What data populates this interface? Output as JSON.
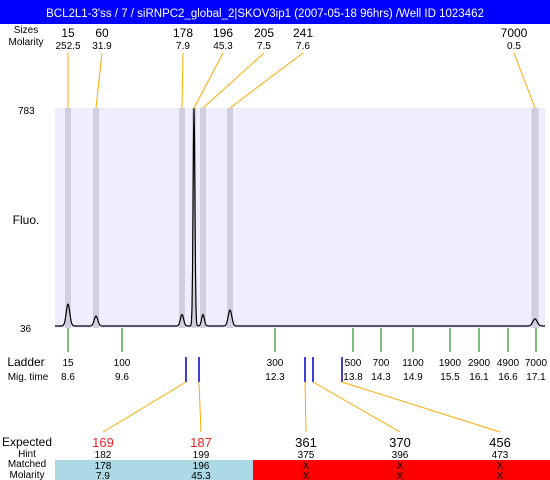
{
  "title": "BCL2L1-3'ss / 7 / siRNPC2_global_2|SKOV3ip1 (2007-05-18 96hrs) /Well ID 1023462",
  "labels": {
    "sizes": "Sizes",
    "molarity": "Molarity",
    "fluo": "Fluo.",
    "ladder": "Ladder",
    "mig_time": "Mig. time",
    "expected": "Expected",
    "hint": "Hint",
    "matched": "Matched",
    "molarity_bottom": "Molarity"
  },
  "colors": {
    "title_bg": "#0000ff",
    "plot_bg": "#eeeeff",
    "band": "#cfcfdf",
    "connector": "#ffaa00",
    "ladder_tick": "#007700",
    "marker": "#0000cc",
    "expected_red": "#ee2222",
    "matched_ok": "#add8e6",
    "matched_fail": "#ff0000"
  },
  "top_peaks": [
    {
      "size": "15",
      "molarity": "252.5"
    },
    {
      "size": "60",
      "molarity": "31.9"
    },
    {
      "size": "178",
      "molarity": "7.9"
    },
    {
      "size": "196",
      "molarity": "45.3"
    },
    {
      "size": "205",
      "molarity": "7.5"
    },
    {
      "size": "241",
      "molarity": "7.6"
    },
    {
      "size": "7000",
      "molarity": "0.5"
    }
  ],
  "ladder": [
    {
      "size": "15",
      "time": "8.6"
    },
    {
      "size": "100",
      "time": "9.6"
    },
    {
      "size": "300",
      "time": "12.3"
    },
    {
      "size": "500",
      "time": "13.8"
    },
    {
      "size": "700",
      "time": "14.3"
    },
    {
      "size": "1100",
      "time": "14.9"
    },
    {
      "size": "1900",
      "time": "15.5"
    },
    {
      "size": "2900",
      "time": "16.1"
    },
    {
      "size": "4900",
      "time": "16.6"
    },
    {
      "size": "7000",
      "time": "17.1"
    }
  ],
  "expected": [
    {
      "expected": "169",
      "hint": "182",
      "matched": "178",
      "molarity": "7.9",
      "status": "ok"
    },
    {
      "expected": "187",
      "hint": "199",
      "matched": "196",
      "molarity": "45.3",
      "status": "ok"
    },
    {
      "expected": "361",
      "hint": "375",
      "matched": "X",
      "molarity": "X",
      "status": "fail"
    },
    {
      "expected": "370",
      "hint": "396",
      "matched": "X",
      "molarity": "X",
      "status": "fail"
    },
    {
      "expected": "456",
      "hint": "473",
      "matched": "X",
      "molarity": "X",
      "status": "fail"
    }
  ],
  "chart_data": {
    "type": "line",
    "title": "BCL2L1-3'ss / 7 / siRNPC2_global_2|SKOV3ip1 (2007-05-18 96hrs) /Well ID 1023462",
    "xlabel": "",
    "ylabel": "Fluo.",
    "ylim": [
      36,
      783
    ],
    "x_ticks_size_bp": [
      15,
      100,
      300,
      500,
      700,
      1100,
      1900,
      2900,
      4900,
      7000
    ],
    "x_ticks_mig_time": [
      8.6,
      9.6,
      12.3,
      13.8,
      14.3,
      14.9,
      15.5,
      16.1,
      16.6,
      17.1
    ],
    "peaks": [
      {
        "size_bp": 15,
        "height": 110,
        "molarity": 252.5
      },
      {
        "size_bp": 60,
        "height": 70,
        "molarity": 31.9
      },
      {
        "size_bp": 178,
        "height": 75,
        "molarity": 7.9
      },
      {
        "size_bp": 196,
        "height": 775,
        "molarity": 45.3
      },
      {
        "size_bp": 205,
        "height": 75,
        "molarity": 7.5
      },
      {
        "size_bp": 241,
        "height": 90,
        "molarity": 7.6
      },
      {
        "size_bp": 7000,
        "height": 60,
        "molarity": 0.5
      }
    ],
    "expected_sizes_bp": [
      169,
      187,
      361,
      370,
      456
    ],
    "hint_sizes_bp": [
      182,
      199,
      375,
      396,
      473
    ]
  }
}
